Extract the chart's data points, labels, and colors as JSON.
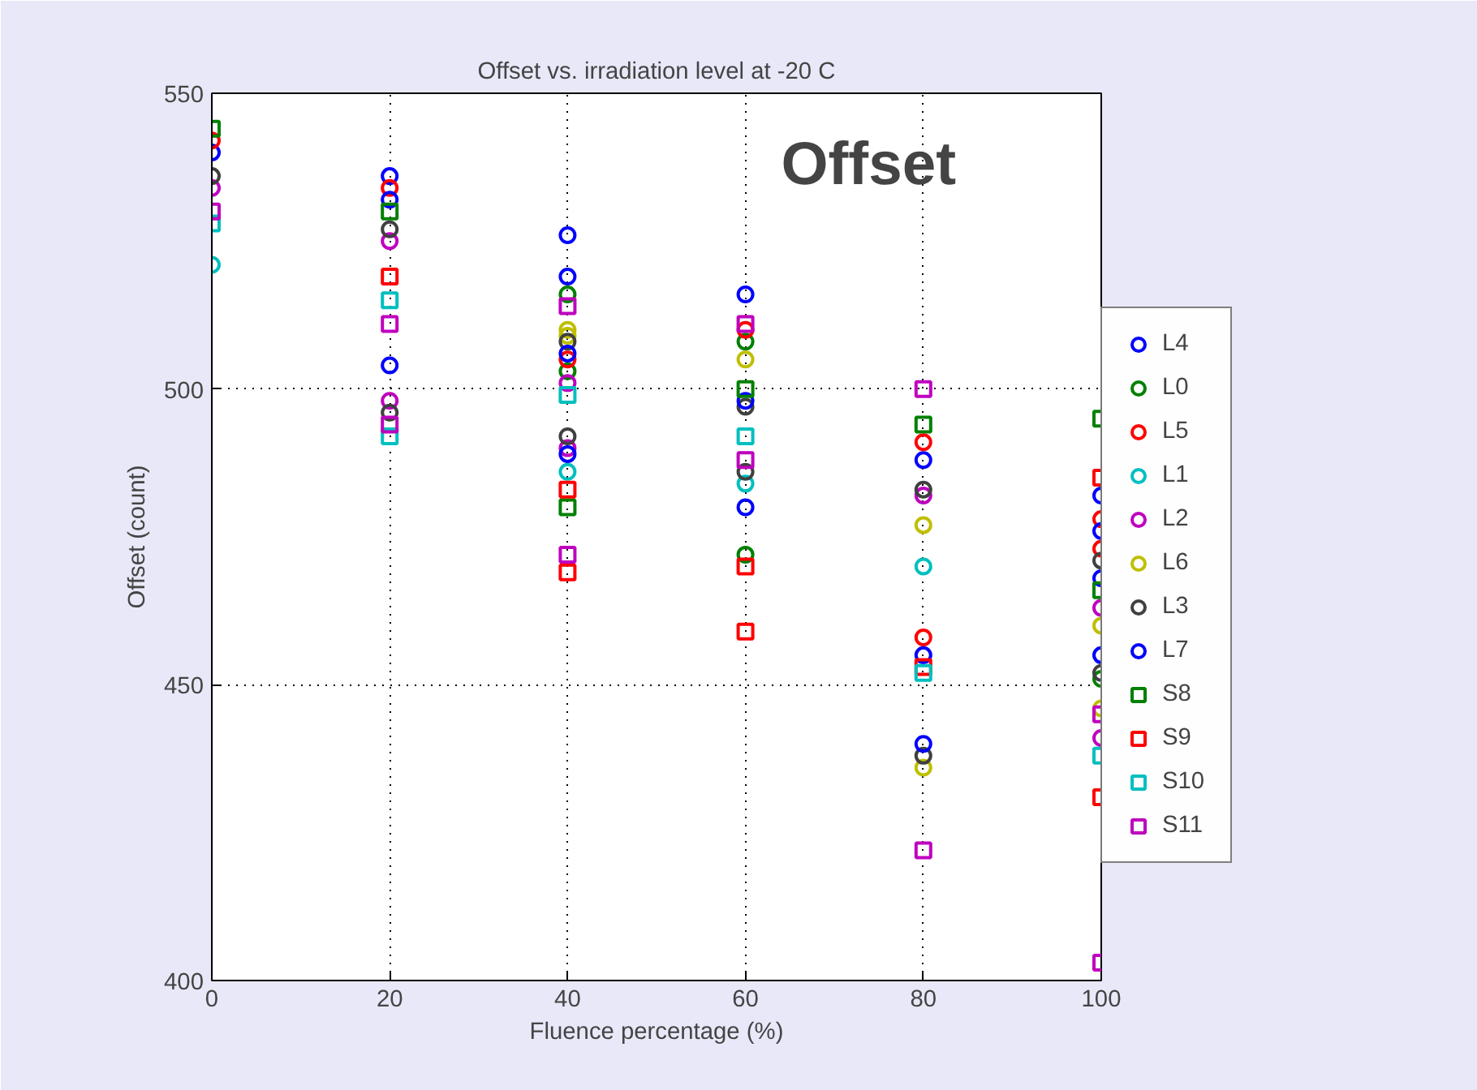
{
  "chart_data": {
    "type": "scatter",
    "title": "Offset vs. irradiation level at -20 C",
    "xlabel": "Fluence percentage (%)",
    "ylabel": "Offset (count)",
    "annotations": [
      "Offset"
    ],
    "xlim": [
      0,
      100
    ],
    "xticks": [
      0,
      20,
      40,
      60,
      80,
      100
    ],
    "ylim": [
      400,
      550
    ],
    "yticks": [
      400,
      450,
      500,
      550
    ],
    "grid": true,
    "legend": "right",
    "series": [
      {
        "name": "L4",
        "color": "#0000ff",
        "marker": "circle",
        "x": [
          0,
          20,
          40,
          60,
          80,
          100
        ],
        "values": [
          540,
          536,
          526,
          516,
          488,
          482
        ]
      },
      {
        "name": "L0",
        "color": "#008000",
        "marker": "circle",
        "x": [
          40,
          40,
          60,
          60,
          100
        ],
        "values": [
          516,
          503,
          508,
          472,
          451
        ]
      },
      {
        "name": "L5",
        "color": "#ff0000",
        "marker": "circle",
        "x": [
          0,
          20,
          40,
          60,
          80,
          80,
          100,
          100
        ],
        "values": [
          542,
          534,
          505,
          510,
          491,
          458,
          478,
          473
        ]
      },
      {
        "name": "L1",
        "color": "#00bfbf",
        "marker": "circle",
        "x": [
          0,
          40,
          60,
          80
        ],
        "values": [
          521,
          486,
          484,
          470
        ]
      },
      {
        "name": "L2",
        "color": "#bf00bf",
        "marker": "circle",
        "x": [
          0,
          20,
          20,
          40,
          40,
          80,
          100,
          100
        ],
        "values": [
          534,
          525,
          498,
          501,
          490,
          482,
          463,
          441
        ]
      },
      {
        "name": "L6",
        "color": "#bfbf00",
        "marker": "circle",
        "x": [
          40,
          40,
          60,
          80,
          80,
          100,
          100
        ],
        "values": [
          510,
          509,
          505,
          477,
          436,
          460,
          446
        ]
      },
      {
        "name": "L3",
        "color": "#404040",
        "marker": "circle",
        "x": [
          0,
          20,
          20,
          40,
          40,
          60,
          60,
          80,
          80,
          100,
          100
        ],
        "values": [
          536,
          527,
          496,
          508,
          492,
          497,
          486,
          483,
          438,
          471,
          452
        ]
      },
      {
        "name": "L7",
        "color": "#0000ff",
        "marker": "circle",
        "x": [
          20,
          20,
          40,
          40,
          40,
          60,
          60,
          80,
          80,
          100,
          100,
          100
        ],
        "values": [
          532,
          504,
          519,
          506,
          489,
          498,
          480,
          455,
          440,
          476,
          468,
          455
        ]
      },
      {
        "name": "S8",
        "color": "#008000",
        "marker": "square",
        "x": [
          0,
          20,
          40,
          60,
          80,
          100,
          100
        ],
        "values": [
          544,
          530,
          480,
          500,
          494,
          495,
          466
        ]
      },
      {
        "name": "S9",
        "color": "#ff0000",
        "marker": "square",
        "x": [
          20,
          40,
          40,
          60,
          60,
          80,
          100,
          100
        ],
        "values": [
          519,
          483,
          469,
          470,
          459,
          453,
          485,
          431
        ]
      },
      {
        "name": "S10",
        "color": "#00bfbf",
        "marker": "square",
        "x": [
          0,
          20,
          20,
          40,
          60,
          80,
          100
        ],
        "values": [
          528,
          515,
          492,
          499,
          492,
          452,
          438
        ]
      },
      {
        "name": "S11",
        "color": "#bf00bf",
        "marker": "square",
        "x": [
          0,
          20,
          20,
          40,
          40,
          60,
          60,
          80,
          80,
          100,
          100
        ],
        "values": [
          530,
          511,
          494,
          514,
          472,
          511,
          488,
          500,
          422,
          445,
          403
        ]
      }
    ]
  }
}
